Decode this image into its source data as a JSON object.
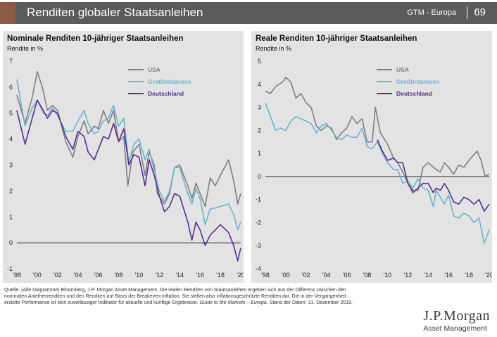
{
  "header": {
    "title": "Renditen globaler Staatsanleihen",
    "section": "GTM - Europa",
    "page": "69",
    "colors": {
      "band": "#5b5b5b",
      "accent": "#8a5a44"
    }
  },
  "chart_data": [
    {
      "type": "line",
      "title": "Nominale Renditen 10-jähriger Staatsanleihen",
      "ylabel": "Rendite in %",
      "ylim": [
        -1,
        7
      ],
      "yticks": [
        "-1",
        "0",
        "1",
        "2",
        "3",
        "4",
        "5",
        "6",
        "7"
      ],
      "xlim": [
        1998,
        2020
      ],
      "xticks": [
        "'98",
        "'00",
        "'02",
        "'04",
        "'06",
        "'08",
        "'10",
        "'12",
        "'14",
        "'16",
        "'18",
        "'20"
      ],
      "grid": false,
      "legend": "top-right",
      "series": [
        {
          "name": "USA",
          "color": "#7f7f7f",
          "points": [
            [
              1998,
              5.7
            ],
            [
              1998.8,
              4.6
            ],
            [
              1999.5,
              5.6
            ],
            [
              2000,
              6.6
            ],
            [
              2000.5,
              6.0
            ],
            [
              2001,
              5.1
            ],
            [
              2001.5,
              5.3
            ],
            [
              2002,
              5.1
            ],
            [
              2002.8,
              3.9
            ],
            [
              2003.5,
              3.3
            ],
            [
              2004,
              4.1
            ],
            [
              2004.6,
              4.7
            ],
            [
              2005,
              4.2
            ],
            [
              2005.6,
              4.5
            ],
            [
              2006,
              4.4
            ],
            [
              2006.5,
              5.1
            ],
            [
              2007,
              4.6
            ],
            [
              2007.5,
              5.1
            ],
            [
              2008,
              3.9
            ],
            [
              2008.5,
              4.1
            ],
            [
              2008.9,
              2.2
            ],
            [
              2009.4,
              3.5
            ],
            [
              2010,
              3.8
            ],
            [
              2010.6,
              2.6
            ],
            [
              2011,
              3.5
            ],
            [
              2011.5,
              3.0
            ],
            [
              2011.8,
              1.9
            ],
            [
              2012.5,
              1.5
            ],
            [
              2013,
              1.9
            ],
            [
              2013.5,
              2.9
            ],
            [
              2014,
              3.0
            ],
            [
              2014.8,
              2.2
            ],
            [
              2015.2,
              1.7
            ],
            [
              2015.6,
              2.3
            ],
            [
              2016,
              1.9
            ],
            [
              2016.5,
              1.4
            ],
            [
              2017,
              2.5
            ],
            [
              2017.5,
              2.2
            ],
            [
              2018,
              2.6
            ],
            [
              2018.8,
              3.2
            ],
            [
              2019.3,
              2.4
            ],
            [
              2019.7,
              1.5
            ],
            [
              2020,
              1.9
            ]
          ]
        },
        {
          "name": "Großbritannien",
          "color": "#6cb3d2",
          "points": [
            [
              1998,
              6.3
            ],
            [
              1998.8,
              4.5
            ],
            [
              1999.5,
              5.2
            ],
            [
              2000,
              5.5
            ],
            [
              2000.6,
              5.0
            ],
            [
              2001,
              4.9
            ],
            [
              2001.5,
              5.2
            ],
            [
              2002,
              4.9
            ],
            [
              2002.8,
              4.3
            ],
            [
              2003.5,
              4.3
            ],
            [
              2004,
              4.7
            ],
            [
              2004.6,
              5.1
            ],
            [
              2005,
              4.6
            ],
            [
              2005.6,
              4.2
            ],
            [
              2006,
              4.3
            ],
            [
              2006.5,
              4.7
            ],
            [
              2007,
              4.8
            ],
            [
              2007.5,
              5.3
            ],
            [
              2008,
              4.5
            ],
            [
              2008.5,
              4.8
            ],
            [
              2009,
              3.1
            ],
            [
              2009.5,
              3.8
            ],
            [
              2010,
              4.0
            ],
            [
              2010.6,
              3.2
            ],
            [
              2011,
              3.6
            ],
            [
              2011.5,
              2.8
            ],
            [
              2012,
              2.0
            ],
            [
              2012.5,
              1.6
            ],
            [
              2013,
              2.0
            ],
            [
              2013.5,
              2.9
            ],
            [
              2014,
              2.9
            ],
            [
              2014.8,
              1.9
            ],
            [
              2015.2,
              1.5
            ],
            [
              2015.6,
              2.1
            ],
            [
              2016,
              1.7
            ],
            [
              2016.5,
              0.7
            ],
            [
              2017,
              1.3
            ],
            [
              2018,
              1.4
            ],
            [
              2018.8,
              1.5
            ],
            [
              2019.3,
              1.1
            ],
            [
              2019.7,
              0.5
            ],
            [
              2020,
              0.8
            ]
          ]
        },
        {
          "name": "Deutschland",
          "color": "#5a2d91",
          "points": [
            [
              1998,
              5.1
            ],
            [
              1998.8,
              3.8
            ],
            [
              1999.5,
              4.8
            ],
            [
              2000,
              5.5
            ],
            [
              2000.6,
              5.1
            ],
            [
              2001,
              4.8
            ],
            [
              2001.5,
              5.1
            ],
            [
              2002,
              5.0
            ],
            [
              2002.8,
              4.1
            ],
            [
              2003.5,
              3.6
            ],
            [
              2004,
              4.3
            ],
            [
              2004.6,
              4.1
            ],
            [
              2005,
              3.5
            ],
            [
              2005.6,
              3.2
            ],
            [
              2006,
              3.6
            ],
            [
              2006.5,
              4.1
            ],
            [
              2007,
              4.0
            ],
            [
              2007.5,
              4.6
            ],
            [
              2008,
              3.9
            ],
            [
              2008.5,
              4.4
            ],
            [
              2009,
              3.0
            ],
            [
              2009.5,
              3.4
            ],
            [
              2010,
              3.3
            ],
            [
              2010.6,
              2.2
            ],
            [
              2011,
              3.2
            ],
            [
              2011.5,
              2.6
            ],
            [
              2012,
              1.8
            ],
            [
              2012.5,
              1.2
            ],
            [
              2013,
              1.4
            ],
            [
              2013.5,
              1.9
            ],
            [
              2014,
              1.8
            ],
            [
              2014.8,
              0.8
            ],
            [
              2015.2,
              0.1
            ],
            [
              2015.6,
              0.8
            ],
            [
              2016,
              0.5
            ],
            [
              2016.5,
              -0.1
            ],
            [
              2017,
              0.3
            ],
            [
              2017.5,
              0.5
            ],
            [
              2018,
              0.7
            ],
            [
              2018.8,
              0.4
            ],
            [
              2019.3,
              -0.1
            ],
            [
              2019.7,
              -0.7
            ],
            [
              2020,
              -0.2
            ]
          ]
        }
      ]
    },
    {
      "type": "line",
      "title": "Reale Renditen 10-jähriger Staatsanleihen",
      "ylabel": "Rendite in %",
      "ylim": [
        -4,
        5
      ],
      "yticks": [
        "-4",
        "-3",
        "-2",
        "-1",
        "0",
        "1",
        "2",
        "3",
        "4",
        "5"
      ],
      "xlim": [
        1998,
        2020
      ],
      "xticks": [
        "'98",
        "'00",
        "'02",
        "'04",
        "'06",
        "'08",
        "'10",
        "'12",
        "'14",
        "'16",
        "'18",
        "'20"
      ],
      "grid": false,
      "legend": "top-right",
      "series": [
        {
          "name": "USA",
          "color": "#7f7f7f",
          "points": [
            [
              1998,
              3.7
            ],
            [
              1998.5,
              3.6
            ],
            [
              1999,
              3.9
            ],
            [
              1999.7,
              4.1
            ],
            [
              2000,
              4.3
            ],
            [
              2000.5,
              4.1
            ],
            [
              2001,
              3.4
            ],
            [
              2001.5,
              3.6
            ],
            [
              2002,
              3.2
            ],
            [
              2002.5,
              3.0
            ],
            [
              2003,
              2.2
            ],
            [
              2003.5,
              2.0
            ],
            [
              2004,
              2.2
            ],
            [
              2004.5,
              2.1
            ],
            [
              2005,
              1.6
            ],
            [
              2005.5,
              1.9
            ],
            [
              2006,
              2.1
            ],
            [
              2006.5,
              2.6
            ],
            [
              2007,
              2.3
            ],
            [
              2007.5,
              2.5
            ],
            [
              2008,
              1.5
            ],
            [
              2008.5,
              1.5
            ],
            [
              2008.8,
              3.0
            ],
            [
              2009.3,
              1.9
            ],
            [
              2010,
              1.4
            ],
            [
              2010.6,
              0.8
            ],
            [
              2011,
              0.6
            ],
            [
              2011.5,
              0.2
            ],
            [
              2012,
              -0.3
            ],
            [
              2012.5,
              -0.6
            ],
            [
              2013,
              -0.6
            ],
            [
              2013.5,
              0.4
            ],
            [
              2014,
              0.6
            ],
            [
              2014.8,
              0.3
            ],
            [
              2015.2,
              0.2
            ],
            [
              2015.6,
              0.6
            ],
            [
              2016,
              0.4
            ],
            [
              2016.5,
              0.1
            ],
            [
              2017,
              0.5
            ],
            [
              2017.5,
              0.4
            ],
            [
              2018,
              0.7
            ],
            [
              2018.8,
              1.1
            ],
            [
              2019.2,
              0.7
            ],
            [
              2019.6,
              0.0
            ],
            [
              2020,
              0.1
            ]
          ]
        },
        {
          "name": "Großbritannien",
          "color": "#6cb3d2",
          "points": [
            [
              1998,
              3.2
            ],
            [
              1998.5,
              2.6
            ],
            [
              1999,
              2.0
            ],
            [
              1999.5,
              2.1
            ],
            [
              2000,
              2.0
            ],
            [
              2000.5,
              2.4
            ],
            [
              2001,
              2.6
            ],
            [
              2001.5,
              2.5
            ],
            [
              2002,
              2.4
            ],
            [
              2002.5,
              2.3
            ],
            [
              2003,
              1.9
            ],
            [
              2003.5,
              2.2
            ],
            [
              2004,
              2.3
            ],
            [
              2004.5,
              2.0
            ],
            [
              2005,
              1.7
            ],
            [
              2005.5,
              1.6
            ],
            [
              2006,
              1.8
            ],
            [
              2006.5,
              1.7
            ],
            [
              2007,
              1.7
            ],
            [
              2007.5,
              2.1
            ],
            [
              2008,
              1.3
            ],
            [
              2008.5,
              1.2
            ],
            [
              2009,
              1.5
            ],
            [
              2009.5,
              1.0
            ],
            [
              2010,
              0.6
            ],
            [
              2010.6,
              0.3
            ],
            [
              2011,
              0.3
            ],
            [
              2011.5,
              -0.3
            ],
            [
              2012,
              -0.2
            ],
            [
              2012.5,
              -0.5
            ],
            [
              2013,
              -0.1
            ],
            [
              2013.5,
              -0.5
            ],
            [
              2014,
              -0.6
            ],
            [
              2014.5,
              -1.3
            ],
            [
              2014.8,
              -0.6
            ],
            [
              2015.2,
              -0.9
            ],
            [
              2015.6,
              -1.2
            ],
            [
              2016,
              -0.8
            ],
            [
              2016.5,
              -1.7
            ],
            [
              2017,
              -1.8
            ],
            [
              2017.5,
              -1.6
            ],
            [
              2018,
              -1.7
            ],
            [
              2018.5,
              -2.0
            ],
            [
              2019,
              -1.8
            ],
            [
              2019.5,
              -2.9
            ],
            [
              2020,
              -2.3
            ]
          ]
        },
        {
          "name": "Deutschland",
          "color": "#5a2d91",
          "points": [
            [
              2009,
              1.6
            ],
            [
              2009.5,
              1.1
            ],
            [
              2010,
              0.7
            ],
            [
              2010.6,
              0.8
            ],
            [
              2011,
              0.6
            ],
            [
              2011.5,
              0.6
            ],
            [
              2012,
              -0.3
            ],
            [
              2012.5,
              -0.7
            ],
            [
              2013,
              -0.5
            ],
            [
              2013.5,
              -0.3
            ],
            [
              2014,
              -0.3
            ],
            [
              2014.5,
              -0.7
            ],
            [
              2014.8,
              -0.5
            ],
            [
              2015.2,
              -0.6
            ],
            [
              2015.6,
              -0.3
            ],
            [
              2016,
              -0.6
            ],
            [
              2016.5,
              -1.1
            ],
            [
              2017,
              -1.2
            ],
            [
              2017.5,
              -0.9
            ],
            [
              2018,
              -1.0
            ],
            [
              2018.5,
              -1.2
            ],
            [
              2019,
              -1.0
            ],
            [
              2019.5,
              -1.5
            ],
            [
              2020,
              -1.2
            ]
          ]
        }
      ]
    }
  ],
  "footer": {
    "source_1": "Quelle: (Alle Diagramme) Bloomberg, J.P. Morgan Asset Management. Die realen Renditen von Staatsanleihen ergeben sich aus der Differenz zwischen den",
    "source_2": "nominalen Anleihenrenditen und den Renditen auf Basis der Breakeven-Inflation. Sie stellen also inflationsgeschützte Renditen dar. Die in der Vergangenheit",
    "source_3a": "erzielte Performance ist kein zuverlässiger Indikator für aktuelle und künftige Ergebnisse.",
    "source_3b": "Guide to the Markets – Europa.",
    "source_3c": "Stand der Daten: 31. Dezember 2019.",
    "logo_line1": "J.P.Morgan",
    "logo_line2": "Asset Management"
  }
}
